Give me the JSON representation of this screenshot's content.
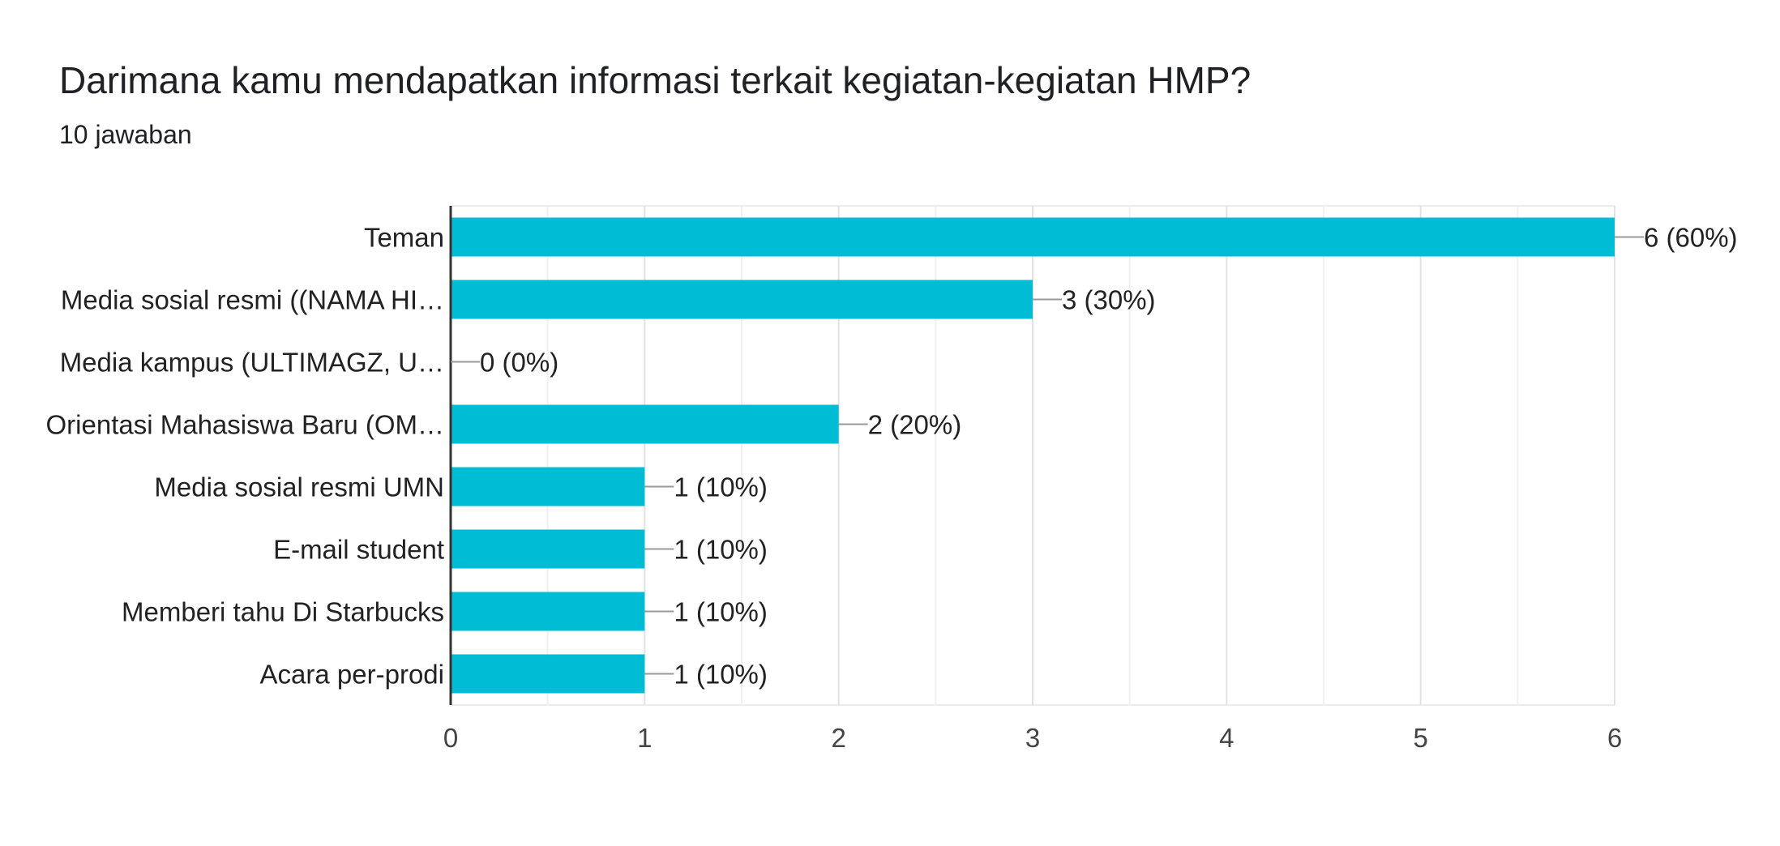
{
  "card": {
    "title": "Darimana kamu mendapatkan informasi terkait kegiatan-kegiatan HMP?",
    "subtitle": "10 jawaban"
  },
  "chart_data": {
    "type": "bar",
    "orientation": "horizontal",
    "categories": [
      "Teman",
      "Media sosial resmi ((NAMA HI…",
      "Media kampus (ULTIMAGZ, U…",
      "Orientasi Mahasiswa Baru (OM…",
      "Media sosial resmi UMN",
      "E-mail student",
      "Memberi tahu Di Starbucks",
      "Acara per-prodi"
    ],
    "values": [
      6,
      3,
      0,
      2,
      1,
      1,
      1,
      1
    ],
    "value_labels": [
      "6 (60%)",
      "3 (30%)",
      "0 (0%)",
      "2 (20%)",
      "1 (10%)",
      "1 (10%)",
      "1 (10%)",
      "1 (10%)"
    ],
    "xlim": [
      0,
      6
    ],
    "x_ticks": [
      "0",
      "1",
      "2",
      "3",
      "4",
      "5",
      "6"
    ],
    "grid": true,
    "legend": "none",
    "bar_color": "#00bcd4",
    "grid_color": "#ebebeb",
    "axis_color": "#333333",
    "leader_color": "#999999"
  }
}
